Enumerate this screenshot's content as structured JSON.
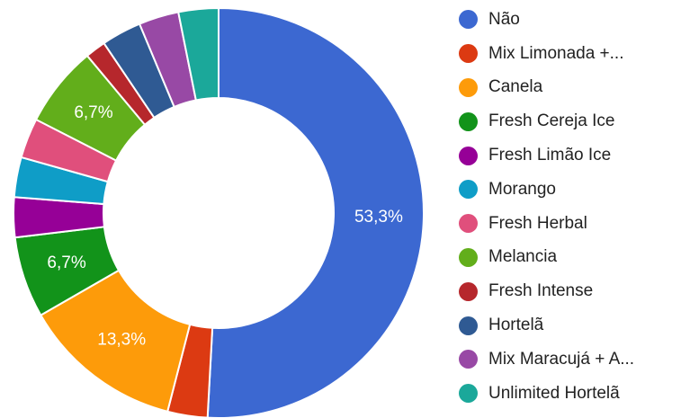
{
  "chart_data": {
    "type": "pie",
    "variant": "donut",
    "legend_position": "right",
    "slices": [
      {
        "label": "Não",
        "value": 53.3,
        "data_label": "53,3%",
        "color": "#3c68d1"
      },
      {
        "label": "Mix Limonada +...",
        "value": 3.3,
        "data_label": "",
        "color": "#dc3a12"
      },
      {
        "label": "Canela",
        "value": 13.3,
        "data_label": "13,3%",
        "color": "#fd9b0a"
      },
      {
        "label": "Fresh Cereja Ice",
        "value": 6.7,
        "data_label": "6,7%",
        "color": "#12931a"
      },
      {
        "label": "Fresh Limão Ice",
        "value": 3.3,
        "data_label": "",
        "color": "#960097"
      },
      {
        "label": "Morango",
        "value": 3.3,
        "data_label": "",
        "color": "#0f9dc7"
      },
      {
        "label": "Fresh Herbal",
        "value": 3.3,
        "data_label": "",
        "color": "#e04f7c"
      },
      {
        "label": "Melancia",
        "value": 6.7,
        "data_label": "6,7%",
        "color": "#62ae1b"
      },
      {
        "label": "Fresh Intense",
        "value": 1.7,
        "data_label": "",
        "color": "#b6272c"
      },
      {
        "label": "Hortelã",
        "value": 3.3,
        "data_label": "",
        "color": "#2f5a93"
      },
      {
        "label": "Mix Maracujá + A...",
        "value": 3.3,
        "data_label": "",
        "color": "#9849a5"
      },
      {
        "label": "Unlimited Hortelã",
        "value": 3.3,
        "data_label": "",
        "color": "#1ba89a"
      }
    ]
  }
}
